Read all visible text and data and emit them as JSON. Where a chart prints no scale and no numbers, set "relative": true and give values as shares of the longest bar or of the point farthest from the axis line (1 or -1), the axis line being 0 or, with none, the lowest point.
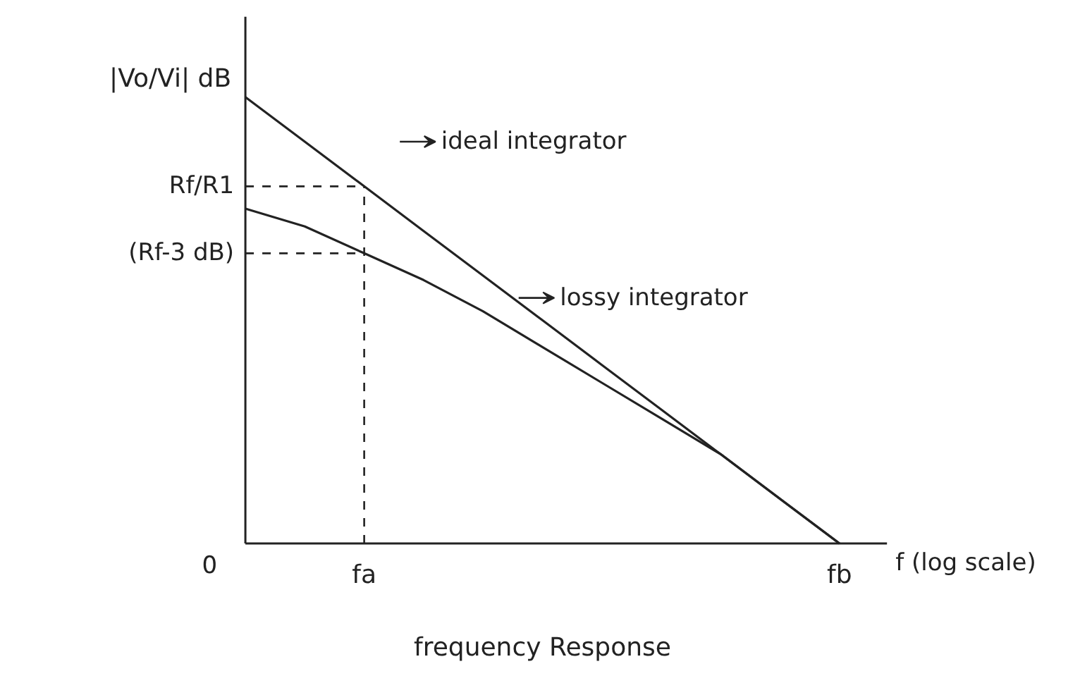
{
  "chart_data": {
    "type": "line",
    "relative": true,
    "title": "frequency Response",
    "xlabel": "f (log scale)",
    "ylabel": "|Vo/Vi| dB",
    "categories": [
      null,
      null,
      "fa",
      null,
      null,
      null,
      null,
      null,
      null,
      null,
      "fb"
    ],
    "series": [
      {
        "name": "ideal integrator",
        "color": "#222222",
        "values": [
          1,
          0.9,
          0.8,
          0.7,
          0.6,
          0.5,
          0.4,
          0.3,
          0.2,
          0.1,
          0
        ]
      },
      {
        "name": "lossy integrator",
        "color": "#222222",
        "values": [
          0.75,
          0.71,
          0.65,
          0.59,
          0.52,
          0.44,
          0.36,
          0.28,
          0.2,
          0.1,
          0
        ]
      }
    ],
    "ref_lines": [
      {
        "axis": "y",
        "value": 0.8,
        "label": "Rf/R1",
        "line_style": "dashed"
      },
      {
        "axis": "y",
        "value": 0.65,
        "label": "(Rf-3 dB)",
        "line_style": "dashed"
      },
      {
        "axis": "x",
        "value": "fa",
        "line_style": "dashed"
      }
    ],
    "annotations": [
      "0"
    ],
    "grid": false,
    "legend": "top right",
    "marker": "none",
    "line_style": "solid"
  }
}
